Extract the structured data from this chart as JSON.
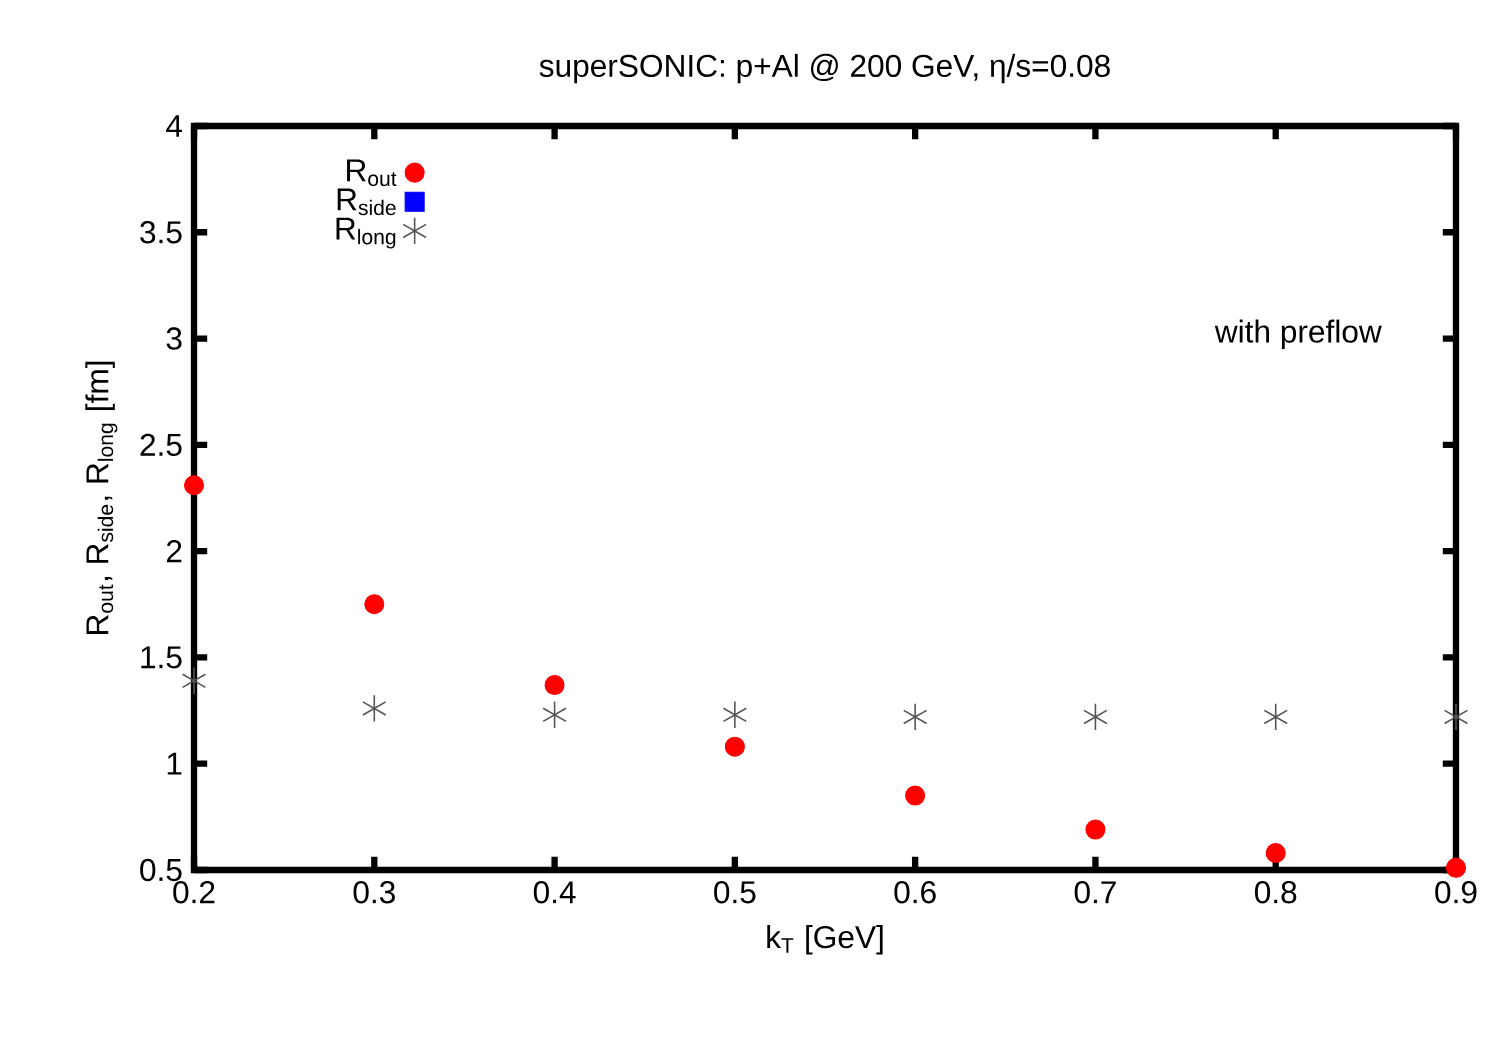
{
  "chart_data": {
    "type": "scatter",
    "title": "superSONIC: p+Al @ 200 GeV, η/s=0.08",
    "xlabel": "k$_{T}$ [GeV]",
    "ylabel": "R$_{out}$, R$_{side}$, R$_{long}$ [fm]",
    "x": [
      0.2,
      0.3,
      0.4,
      0.5,
      0.6,
      0.7,
      0.8,
      0.9
    ],
    "series": [
      {
        "name": "R$_{out}$",
        "color": "#ff0000",
        "marker": "circle",
        "values": [
          2.31,
          1.75,
          1.37,
          1.08,
          0.85,
          0.69,
          0.58,
          0.51
        ]
      },
      {
        "name": "R$_{side}$",
        "color": "#0000ff",
        "marker": "square",
        "values": [
          null,
          null,
          null,
          null,
          null,
          null,
          null,
          null
        ]
      },
      {
        "name": "R$_{long}$",
        "color": "#555555",
        "marker": "cross",
        "values": [
          1.39,
          1.26,
          1.23,
          1.23,
          1.22,
          1.22,
          1.22,
          1.22
        ]
      }
    ],
    "xlim": [
      0.2,
      0.9
    ],
    "ylim": [
      0.5,
      4
    ],
    "xticks": [
      0.2,
      0.3,
      0.4,
      0.5,
      0.6,
      0.7,
      0.8,
      0.9
    ],
    "yticks": [
      0.5,
      1,
      1.5,
      2,
      2.5,
      3,
      3.5,
      4
    ],
    "annotations": [
      "with preflow"
    ],
    "legend": "top left",
    "grid": false
  }
}
